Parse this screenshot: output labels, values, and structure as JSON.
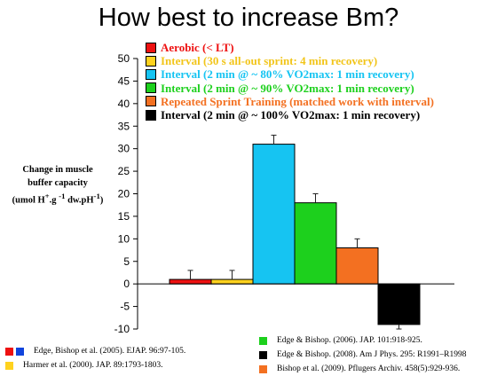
{
  "page_title": "How best to increase Bm?",
  "y_axis_label": {
    "line1": "Change in muscle",
    "line2": "buffer capacity",
    "unit_prefix": "(umol H",
    "unit_sup1": "+",
    "unit_mid": ".g ",
    "unit_sup2": "-1",
    "unit_mid2": " dw.pH",
    "unit_sup3": "-1",
    "unit_suffix": ")"
  },
  "chart_data": {
    "type": "bar",
    "ylim": [
      -10,
      50
    ],
    "ticks": [
      50,
      45,
      40,
      35,
      30,
      25,
      20,
      15,
      10,
      5,
      0,
      -5,
      -10
    ],
    "grid": false,
    "legend_position": "top-left",
    "series": [
      {
        "name": "Aerobic (< LT)",
        "value": 1,
        "error": 2,
        "color": "#ee1111",
        "legend_text_color": "#ee1111"
      },
      {
        "name": "Interval (30 s all-out sprint: 4 min recovery)",
        "value": 1,
        "error": 2,
        "color": "#ffd21e",
        "legend_text_color": "#f2c51a"
      },
      {
        "name": "Interval (2 min @ ~ 80% VO2max: 1 min recovery)",
        "value": 31,
        "error": 2,
        "color": "#16c4f2",
        "legend_text_color": "#16c4f2"
      },
      {
        "name": "Interval (2 min @ ~ 90% VO2max: 1 min recovery)",
        "value": 18,
        "error": 2,
        "color": "#1dd01d",
        "legend_text_color": "#1dd01d"
      },
      {
        "name": "Repeated Sprint Training (matched work with interval)",
        "value": 8,
        "error": 2,
        "color": "#f37021",
        "legend_text_color": "#f37021"
      },
      {
        "name": "Interval (2 min @ ~ 100% VO2max: 1 min recovery)",
        "value": -9,
        "error": 1,
        "color": "#000000",
        "legend_text_color": "#000000"
      }
    ]
  },
  "references_left": [
    {
      "text": "Edge, Bishop et al. (2005). EJAP. 96:97-105.",
      "colors": [
        "#ee1111",
        "#1144dd"
      ]
    },
    {
      "text": "Harmer et al. (2000). JAP. 89:1793-1803.",
      "colors": [
        "#ffd21e"
      ]
    }
  ],
  "references_right": [
    {
      "text": "Edge & Bishop. (2006). JAP. 101:918-925.",
      "colors": [
        "#1dd01d"
      ]
    },
    {
      "text": "Edge & Bishop. (2008). Am J Phys. 295: R1991–R1998",
      "colors": [
        "#000000"
      ]
    },
    {
      "text": "Bishop et al. (2009). Pflugers Archiv. 458(5):929-936.",
      "colors": [
        "#f37021"
      ]
    }
  ]
}
